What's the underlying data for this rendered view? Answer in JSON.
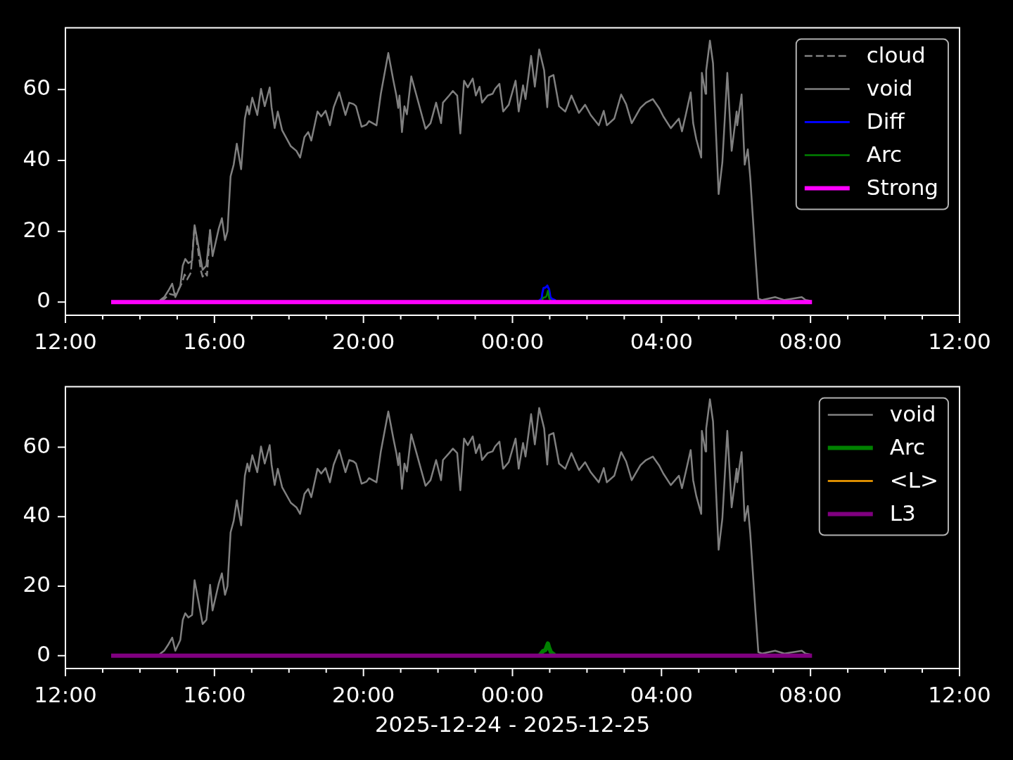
{
  "chart_data": [
    {
      "type": "line",
      "xlim": [
        "2025-12-24T12:00",
        "2025-12-25T12:00"
      ],
      "xticks": [
        {
          "value": "2025-12-24T12:00",
          "label": "12:00"
        },
        {
          "value": "2025-12-24T13:00",
          "label": null
        },
        {
          "value": "2025-12-24T14:00",
          "label": null
        },
        {
          "value": "2025-12-24T15:00",
          "label": null
        },
        {
          "value": "2025-12-24T16:00",
          "label": "16:00"
        },
        {
          "value": "2025-12-24T17:00",
          "label": null
        },
        {
          "value": "2025-12-24T18:00",
          "label": null
        },
        {
          "value": "2025-12-24T19:00",
          "label": null
        },
        {
          "value": "2025-12-24T20:00",
          "label": "20:00"
        },
        {
          "value": "2025-12-24T21:00",
          "label": null
        },
        {
          "value": "2025-12-24T22:00",
          "label": null
        },
        {
          "value": "2025-12-24T23:00",
          "label": null
        },
        {
          "value": "2025-12-25T00:00",
          "label": "00:00"
        },
        {
          "value": "2025-12-25T01:00",
          "label": null
        },
        {
          "value": "2025-12-25T02:00",
          "label": null
        },
        {
          "value": "2025-12-25T03:00",
          "label": null
        },
        {
          "value": "2025-12-25T04:00",
          "label": "04:00"
        },
        {
          "value": "2025-12-25T05:00",
          "label": null
        },
        {
          "value": "2025-12-25T06:00",
          "label": null
        },
        {
          "value": "2025-12-25T07:00",
          "label": null
        },
        {
          "value": "2025-12-25T08:00",
          "label": "08:00"
        },
        {
          "value": "2025-12-25T09:00",
          "label": null
        },
        {
          "value": "2025-12-25T10:00",
          "label": null
        },
        {
          "value": "2025-12-25T11:00",
          "label": null
        },
        {
          "value": "2025-12-25T12:00",
          "label": "12:00"
        }
      ],
      "ylim": [
        -3.7,
        77.4
      ],
      "yticks": [
        0,
        20,
        40,
        60
      ],
      "legend": "top right",
      "series": [
        {
          "name": "cloud",
          "color": "#808080",
          "line_style": "dashed",
          "x": [
            "2025-12-24T14:33",
            "2025-12-24T14:40",
            "2025-12-24T14:48",
            "2025-12-24T14:55",
            "2025-12-24T15:02",
            "2025-12-24T15:08",
            "2025-12-24T15:12",
            "2025-12-24T15:16",
            "2025-12-24T15:22",
            "2025-12-24T15:28",
            "2025-12-24T15:33",
            "2025-12-24T15:38",
            "2025-12-24T15:41",
            "2025-12-24T15:45",
            "2025-12-24T15:48",
            "2025-12-24T15:53"
          ],
          "values": [
            0.3,
            1.0,
            2.3,
            2.0,
            3.5,
            5.5,
            7.8,
            6.4,
            8.3,
            21.7,
            15.5,
            9.0,
            7.2,
            8.3,
            7.5,
            20.4
          ]
        },
        {
          "name": "void",
          "color": "#808080",
          "x": [
            "2025-12-24T14:33",
            "2025-12-24T14:39",
            "2025-12-24T14:46",
            "2025-12-24T14:52",
            "2025-12-24T14:57",
            "2025-12-24T15:05",
            "2025-12-24T15:09",
            "2025-12-24T15:13",
            "2025-12-24T15:18",
            "2025-12-24T15:24",
            "2025-12-24T15:28",
            "2025-12-24T15:33",
            "2025-12-24T15:37",
            "2025-12-24T15:41",
            "2025-12-24T15:47",
            "2025-12-24T15:53",
            "2025-12-24T15:57",
            "2025-12-24T16:02",
            "2025-12-24T16:07",
            "2025-12-24T16:12",
            "2025-12-24T16:17",
            "2025-12-24T16:21",
            "2025-12-24T16:26",
            "2025-12-24T16:31",
            "2025-12-24T16:36",
            "2025-12-24T16:43",
            "2025-12-24T16:49",
            "2025-12-24T16:53",
            "2025-12-24T16:56",
            "2025-12-24T17:01",
            "2025-12-24T17:09",
            "2025-12-24T17:15",
            "2025-12-24T17:21",
            "2025-12-24T17:29",
            "2025-12-24T17:32",
            "2025-12-24T17:37",
            "2025-12-24T17:42",
            "2025-12-24T17:49",
            "2025-12-24T18:03",
            "2025-12-24T18:12",
            "2025-12-24T18:18",
            "2025-12-24T18:25",
            "2025-12-24T18:31",
            "2025-12-24T18:36",
            "2025-12-24T18:46",
            "2025-12-24T18:52",
            "2025-12-24T18:59",
            "2025-12-24T19:06",
            "2025-12-24T19:12",
            "2025-12-24T19:21",
            "2025-12-24T19:31",
            "2025-12-24T19:37",
            "2025-12-24T19:44",
            "2025-12-24T19:48",
            "2025-12-24T19:57",
            "2025-12-24T20:05",
            "2025-12-24T20:09",
            "2025-12-24T20:21",
            "2025-12-24T20:28",
            "2025-12-24T20:40",
            "2025-12-24T20:48",
            "2025-12-24T20:53",
            "2025-12-24T20:56",
            "2025-12-24T20:58",
            "2025-12-24T21:02",
            "2025-12-24T21:06",
            "2025-12-24T21:10",
            "2025-12-24T21:17",
            "2025-12-24T21:25",
            "2025-12-24T21:40",
            "2025-12-24T21:48",
            "2025-12-24T21:57",
            "2025-12-24T22:05",
            "2025-12-24T22:08",
            "2025-12-24T22:18",
            "2025-12-24T22:24",
            "2025-12-24T22:31",
            "2025-12-24T22:36",
            "2025-12-24T22:42",
            "2025-12-24T22:48",
            "2025-12-24T22:56",
            "2025-12-24T23:01",
            "2025-12-24T23:07",
            "2025-12-24T23:11",
            "2025-12-24T23:20",
            "2025-12-24T23:28",
            "2025-12-24T23:32",
            "2025-12-24T23:39",
            "2025-12-24T23:45",
            "2025-12-24T23:54",
            "2025-12-25T00:05",
            "2025-12-25T00:10",
            "2025-12-25T00:17",
            "2025-12-25T00:21",
            "2025-12-25T00:30",
            "2025-12-25T00:36",
            "2025-12-25T00:43",
            "2025-12-25T00:51",
            "2025-12-25T00:56",
            "2025-12-25T00:59",
            "2025-12-25T01:06",
            "2025-12-25T01:15",
            "2025-12-25T01:25",
            "2025-12-25T01:35",
            "2025-12-25T01:47",
            "2025-12-25T01:57",
            "2025-12-25T02:06",
            "2025-12-25T02:19",
            "2025-12-25T02:27",
            "2025-12-25T02:32",
            "2025-12-25T02:44",
            "2025-12-25T02:55",
            "2025-12-25T03:03",
            "2025-12-25T03:12",
            "2025-12-25T03:26",
            "2025-12-25T03:35",
            "2025-12-25T03:46",
            "2025-12-25T03:56",
            "2025-12-25T04:03",
            "2025-12-25T04:15",
            "2025-12-25T04:28",
            "2025-12-25T04:33",
            "2025-12-25T04:39",
            "2025-12-25T04:47",
            "2025-12-25T04:51",
            "2025-12-25T04:56",
            "2025-12-25T05:04",
            "2025-12-25T05:05",
            "2025-12-25T05:11",
            "2025-12-25T05:12",
            "2025-12-25T05:18",
            "2025-12-25T05:23",
            "2025-12-25T05:32",
            "2025-12-25T05:38",
            "2025-12-25T05:46",
            "2025-12-25T05:53",
            "2025-12-25T06:01",
            "2025-12-25T06:02",
            "2025-12-25T06:09",
            "2025-12-25T06:14",
            "2025-12-25T06:19",
            "2025-12-25T06:23",
            "2025-12-25T06:31",
            "2025-12-25T06:36",
            "2025-12-25T06:42",
            "2025-12-25T07:03",
            "2025-12-25T07:18",
            "2025-12-25T07:46",
            "2025-12-25T07:52",
            "2025-12-25T07:58"
          ],
          "values": [
            0.6,
            1.4,
            3.3,
            5.2,
            1.4,
            4.5,
            10.3,
            12.2,
            11.0,
            11.7,
            21.7,
            16.9,
            13.0,
            9.1,
            10.3,
            20.4,
            13.0,
            16.9,
            20.8,
            23.7,
            17.5,
            20.0,
            35.5,
            38.8,
            44.7,
            37.5,
            51.8,
            55.3,
            53.0,
            57.7,
            52.8,
            60.2,
            55.3,
            60.6,
            55.0,
            49.1,
            53.8,
            48.5,
            44.0,
            42.7,
            40.8,
            46.6,
            48.0,
            45.6,
            53.8,
            52.4,
            54.0,
            49.9,
            55.0,
            59.2,
            52.8,
            56.3,
            55.9,
            55.3,
            49.5,
            50.1,
            51.1,
            49.9,
            58.8,
            70.3,
            62.7,
            58.3,
            54.8,
            58.3,
            48.0,
            55.3,
            53.0,
            63.7,
            58.6,
            48.9,
            50.5,
            56.3,
            50.5,
            56.3,
            58.3,
            59.6,
            58.3,
            47.6,
            62.5,
            60.6,
            63.1,
            58.3,
            60.8,
            56.3,
            58.3,
            58.8,
            60.2,
            61.6,
            53.8,
            55.7,
            62.5,
            53.8,
            61.2,
            57.3,
            69.5,
            60.8,
            71.3,
            65.4,
            55.0,
            63.5,
            64.1,
            55.3,
            53.8,
            58.3,
            53.4,
            55.7,
            52.8,
            49.9,
            54.0,
            49.9,
            51.8,
            58.6,
            55.9,
            50.5,
            54.8,
            56.3,
            57.3,
            54.8,
            52.4,
            49.1,
            51.8,
            48.2,
            52.8,
            59.2,
            50.5,
            46.0,
            40.8,
            64.7,
            58.8,
            65.4,
            73.8,
            67.4,
            30.5,
            39.4,
            64.7,
            42.7,
            53.8,
            49.9,
            58.6,
            38.8,
            43.1,
            35.0,
            13.6,
            1.0,
            0.6,
            1.4,
            0.6,
            1.4,
            0.6,
            0.4
          ]
        },
        {
          "name": "Diff",
          "color": "#0000ff",
          "x": [
            "2025-12-25T00:44",
            "2025-12-25T00:47",
            "2025-12-25T00:48",
            "2025-12-25T00:50",
            "2025-12-25T00:53",
            "2025-12-25T00:55",
            "2025-12-25T00:56",
            "2025-12-25T00:57",
            "2025-12-25T00:59",
            "2025-12-25T01:01",
            "2025-12-25T01:03",
            "2025-12-25T01:08"
          ],
          "values": [
            0.6,
            1.0,
            2.5,
            4.0,
            4.1,
            4.4,
            4.7,
            4.3,
            3.6,
            1.5,
            1.0,
            0.6
          ]
        },
        {
          "name": "Arc",
          "color": "#008000",
          "x": [
            "2025-12-25T00:48",
            "2025-12-25T00:49",
            "2025-12-25T00:53",
            "2025-12-25T00:55",
            "2025-12-25T00:57",
            "2025-12-25T00:58",
            "2025-12-25T00:59",
            "2025-12-25T01:01"
          ],
          "values": [
            0.6,
            1.2,
            1.4,
            1.8,
            3.2,
            2.4,
            1.2,
            0.6
          ]
        },
        {
          "name": "Strong",
          "color": "#ff00ff",
          "x": [
            "2025-12-24T13:17",
            "2025-12-25T07:59"
          ],
          "values": [
            0,
            0
          ]
        }
      ]
    },
    {
      "type": "line",
      "xlabel": "2025-12-24 - 2025-12-25",
      "xlim": [
        "2025-12-24T12:00",
        "2025-12-25T12:00"
      ],
      "xticks": [
        {
          "value": "2025-12-24T12:00",
          "label": "12:00"
        },
        {
          "value": "2025-12-24T13:00",
          "label": null
        },
        {
          "value": "2025-12-24T14:00",
          "label": null
        },
        {
          "value": "2025-12-24T15:00",
          "label": null
        },
        {
          "value": "2025-12-24T16:00",
          "label": "16:00"
        },
        {
          "value": "2025-12-24T17:00",
          "label": null
        },
        {
          "value": "2025-12-24T18:00",
          "label": null
        },
        {
          "value": "2025-12-24T19:00",
          "label": null
        },
        {
          "value": "2025-12-24T20:00",
          "label": "20:00"
        },
        {
          "value": "2025-12-24T21:00",
          "label": null
        },
        {
          "value": "2025-12-24T22:00",
          "label": null
        },
        {
          "value": "2025-12-24T23:00",
          "label": null
        },
        {
          "value": "2025-12-25T00:00",
          "label": "00:00"
        },
        {
          "value": "2025-12-25T01:00",
          "label": null
        },
        {
          "value": "2025-12-25T02:00",
          "label": null
        },
        {
          "value": "2025-12-25T03:00",
          "label": null
        },
        {
          "value": "2025-12-25T04:00",
          "label": "04:00"
        },
        {
          "value": "2025-12-25T05:00",
          "label": null
        },
        {
          "value": "2025-12-25T06:00",
          "label": null
        },
        {
          "value": "2025-12-25T07:00",
          "label": null
        },
        {
          "value": "2025-12-25T08:00",
          "label": "08:00"
        },
        {
          "value": "2025-12-25T09:00",
          "label": null
        },
        {
          "value": "2025-12-25T10:00",
          "label": null
        },
        {
          "value": "2025-12-25T11:00",
          "label": null
        },
        {
          "value": "2025-12-25T12:00",
          "label": "12:00"
        }
      ],
      "ylim": [
        -3.7,
        77.4
      ],
      "yticks": [
        0,
        20,
        40,
        60
      ],
      "legend": "top right",
      "series": [
        {
          "name": "void",
          "color": "#808080",
          "x": [
            "2025-12-24T14:33",
            "2025-12-24T14:39",
            "2025-12-24T14:46",
            "2025-12-24T14:52",
            "2025-12-24T14:57",
            "2025-12-24T15:05",
            "2025-12-24T15:09",
            "2025-12-24T15:13",
            "2025-12-24T15:18",
            "2025-12-24T15:24",
            "2025-12-24T15:28",
            "2025-12-24T15:33",
            "2025-12-24T15:37",
            "2025-12-24T15:41",
            "2025-12-24T15:47",
            "2025-12-24T15:53",
            "2025-12-24T15:57",
            "2025-12-24T16:02",
            "2025-12-24T16:07",
            "2025-12-24T16:12",
            "2025-12-24T16:17",
            "2025-12-24T16:21",
            "2025-12-24T16:26",
            "2025-12-24T16:31",
            "2025-12-24T16:36",
            "2025-12-24T16:43",
            "2025-12-24T16:49",
            "2025-12-24T16:53",
            "2025-12-24T16:56",
            "2025-12-24T17:01",
            "2025-12-24T17:09",
            "2025-12-24T17:15",
            "2025-12-24T17:21",
            "2025-12-24T17:29",
            "2025-12-24T17:32",
            "2025-12-24T17:37",
            "2025-12-24T17:42",
            "2025-12-24T17:49",
            "2025-12-24T18:03",
            "2025-12-24T18:12",
            "2025-12-24T18:18",
            "2025-12-24T18:25",
            "2025-12-24T18:31",
            "2025-12-24T18:36",
            "2025-12-24T18:46",
            "2025-12-24T18:52",
            "2025-12-24T18:59",
            "2025-12-24T19:06",
            "2025-12-24T19:12",
            "2025-12-24T19:21",
            "2025-12-24T19:31",
            "2025-12-24T19:37",
            "2025-12-24T19:44",
            "2025-12-24T19:48",
            "2025-12-24T19:57",
            "2025-12-24T20:05",
            "2025-12-24T20:09",
            "2025-12-24T20:21",
            "2025-12-24T20:28",
            "2025-12-24T20:40",
            "2025-12-24T20:48",
            "2025-12-24T20:53",
            "2025-12-24T20:56",
            "2025-12-24T20:58",
            "2025-12-24T21:02",
            "2025-12-24T21:06",
            "2025-12-24T21:10",
            "2025-12-24T21:17",
            "2025-12-24T21:25",
            "2025-12-24T21:40",
            "2025-12-24T21:48",
            "2025-12-24T21:57",
            "2025-12-24T22:05",
            "2025-12-24T22:08",
            "2025-12-24T22:18",
            "2025-12-24T22:24",
            "2025-12-24T22:31",
            "2025-12-24T22:36",
            "2025-12-24T22:42",
            "2025-12-24T22:48",
            "2025-12-24T22:56",
            "2025-12-24T23:01",
            "2025-12-24T23:07",
            "2025-12-24T23:11",
            "2025-12-24T23:20",
            "2025-12-24T23:28",
            "2025-12-24T23:32",
            "2025-12-24T23:39",
            "2025-12-24T23:45",
            "2025-12-24T23:54",
            "2025-12-25T00:05",
            "2025-12-25T00:10",
            "2025-12-25T00:17",
            "2025-12-25T00:21",
            "2025-12-25T00:30",
            "2025-12-25T00:36",
            "2025-12-25T00:43",
            "2025-12-25T00:51",
            "2025-12-25T00:56",
            "2025-12-25T00:59",
            "2025-12-25T01:06",
            "2025-12-25T01:15",
            "2025-12-25T01:25",
            "2025-12-25T01:35",
            "2025-12-25T01:47",
            "2025-12-25T01:57",
            "2025-12-25T02:06",
            "2025-12-25T02:19",
            "2025-12-25T02:27",
            "2025-12-25T02:32",
            "2025-12-25T02:44",
            "2025-12-25T02:55",
            "2025-12-25T03:03",
            "2025-12-25T03:12",
            "2025-12-25T03:26",
            "2025-12-25T03:35",
            "2025-12-25T03:46",
            "2025-12-25T03:56",
            "2025-12-25T04:03",
            "2025-12-25T04:15",
            "2025-12-25T04:28",
            "2025-12-25T04:33",
            "2025-12-25T04:39",
            "2025-12-25T04:47",
            "2025-12-25T04:51",
            "2025-12-25T04:56",
            "2025-12-25T05:04",
            "2025-12-25T05:05",
            "2025-12-25T05:11",
            "2025-12-25T05:12",
            "2025-12-25T05:18",
            "2025-12-25T05:23",
            "2025-12-25T05:32",
            "2025-12-25T05:38",
            "2025-12-25T05:46",
            "2025-12-25T05:53",
            "2025-12-25T06:01",
            "2025-12-25T06:02",
            "2025-12-25T06:09",
            "2025-12-25T06:14",
            "2025-12-25T06:19",
            "2025-12-25T06:23",
            "2025-12-25T06:31",
            "2025-12-25T06:36",
            "2025-12-25T06:42",
            "2025-12-25T07:03",
            "2025-12-25T07:18",
            "2025-12-25T07:46",
            "2025-12-25T07:52",
            "2025-12-25T07:58"
          ],
          "values": [
            0.6,
            1.4,
            3.3,
            5.2,
            1.4,
            4.5,
            10.3,
            12.2,
            11.0,
            11.7,
            21.7,
            16.9,
            13.0,
            9.1,
            10.3,
            20.4,
            13.0,
            16.9,
            20.8,
            23.7,
            17.5,
            20.0,
            35.5,
            38.8,
            44.7,
            37.5,
            51.8,
            55.3,
            53.0,
            57.7,
            52.8,
            60.2,
            55.3,
            60.6,
            55.0,
            49.1,
            53.8,
            48.5,
            44.0,
            42.7,
            40.8,
            46.6,
            48.0,
            45.6,
            53.8,
            52.4,
            54.0,
            49.9,
            55.0,
            59.2,
            52.8,
            56.3,
            55.9,
            55.3,
            49.5,
            50.1,
            51.1,
            49.9,
            58.8,
            70.3,
            62.7,
            58.3,
            54.8,
            58.3,
            48.0,
            55.3,
            53.0,
            63.7,
            58.6,
            48.9,
            50.5,
            56.3,
            50.5,
            56.3,
            58.3,
            59.6,
            58.3,
            47.6,
            62.5,
            60.6,
            63.1,
            58.3,
            60.8,
            56.3,
            58.3,
            58.8,
            60.2,
            61.6,
            53.8,
            55.7,
            62.5,
            53.8,
            61.2,
            57.3,
            69.5,
            60.8,
            71.3,
            65.4,
            55.0,
            63.5,
            64.1,
            55.3,
            53.8,
            58.3,
            53.4,
            55.7,
            52.8,
            49.9,
            54.0,
            49.9,
            51.8,
            58.6,
            55.9,
            50.5,
            54.8,
            56.3,
            57.3,
            54.8,
            52.4,
            49.1,
            51.8,
            48.2,
            52.8,
            59.2,
            50.5,
            46.0,
            40.8,
            64.7,
            58.8,
            65.4,
            73.8,
            67.4,
            30.5,
            39.4,
            64.7,
            42.7,
            53.8,
            49.9,
            58.6,
            38.8,
            43.1,
            35.0,
            13.6,
            1.0,
            0.6,
            1.4,
            0.6,
            1.4,
            0.6,
            0.4
          ]
        },
        {
          "name": "Arc",
          "color": "#008000",
          "x": [
            "2025-12-25T00:46",
            "2025-12-25T00:49",
            "2025-12-25T00:53",
            "2025-12-25T00:55",
            "2025-12-25T00:57",
            "2025-12-25T00:59",
            "2025-12-25T01:02",
            "2025-12-25T01:05"
          ],
          "values": [
            0.6,
            1.3,
            1.6,
            2.6,
            3.5,
            2.3,
            1.0,
            0.6
          ]
        },
        {
          "name": "<L>",
          "color": "#ffa500"
        },
        {
          "name": "L3",
          "color": "#800080",
          "x": [
            "2025-12-24T13:17",
            "2025-12-25T07:59"
          ],
          "values": [
            0,
            0
          ]
        }
      ]
    }
  ]
}
